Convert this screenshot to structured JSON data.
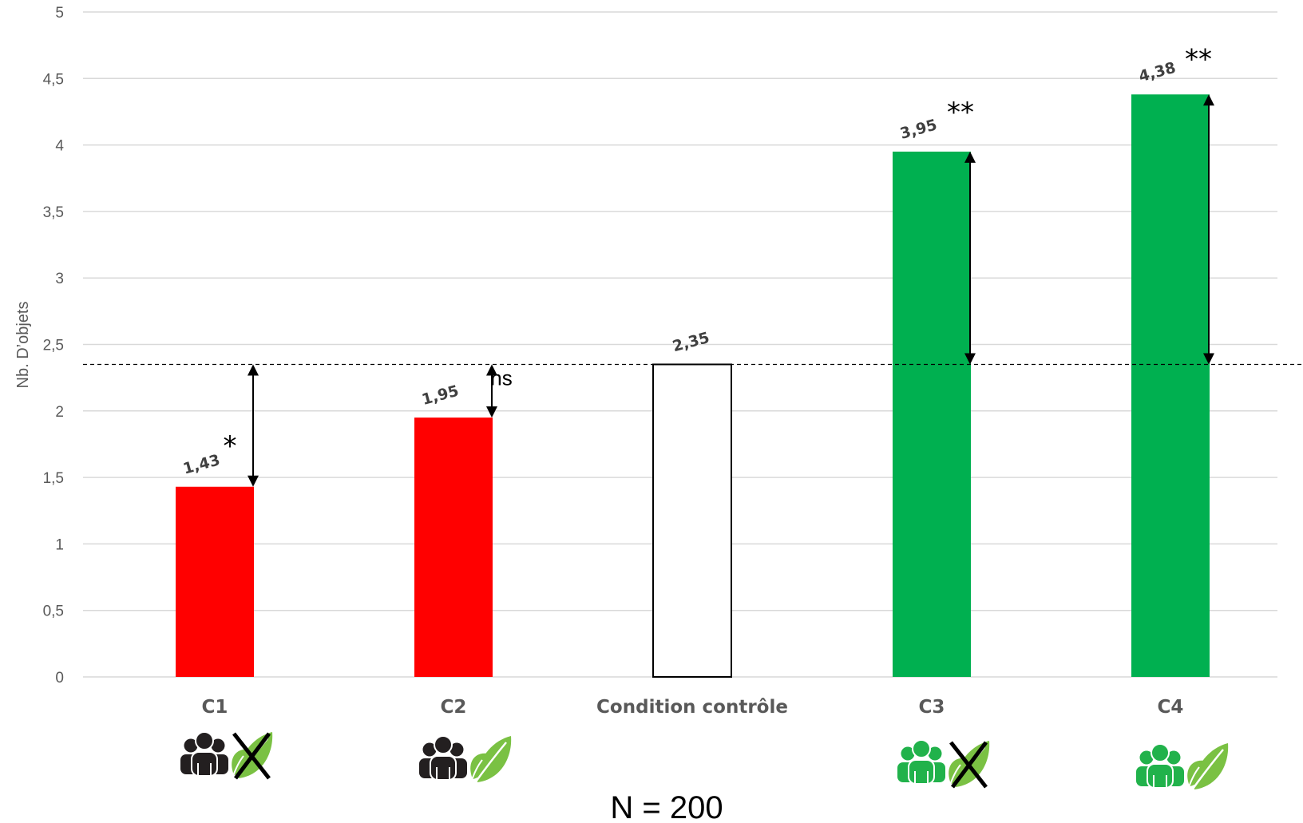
{
  "chart_data": {
    "type": "bar",
    "ylabel": "Nb. D’objets",
    "ylim": [
      0,
      5
    ],
    "yticks": [
      "0",
      "0,5",
      "1",
      "1,5",
      "2",
      "2,5",
      "3",
      "3,5",
      "4",
      "4,5",
      "5"
    ],
    "grid": true,
    "reference_line": 2.35,
    "categories": [
      "C1",
      "C2",
      "Condition contrôle",
      "C3",
      "C4"
    ],
    "values": [
      1.43,
      1.95,
      2.35,
      3.95,
      4.38
    ],
    "value_labels": [
      "1,43",
      "1,95",
      "2,35",
      "3,95",
      "4,38"
    ],
    "significance": [
      "*",
      "ns",
      "",
      "**",
      "**"
    ],
    "bar_colors": [
      "#ff0000",
      "#ff0000",
      "#ffffff",
      "#00b050",
      "#00b050"
    ],
    "condition_icons": [
      {
        "people": "people-black-icon",
        "leaf": "leaf-crossed-icon"
      },
      {
        "people": "people-black-icon",
        "leaf": "leaf-icon"
      },
      null,
      {
        "people": "people-green-icon",
        "leaf": "leaf-crossed-icon"
      },
      {
        "people": "people-green-icon",
        "leaf": "leaf-icon"
      }
    ],
    "footnote": "N = 200"
  },
  "colors": {
    "red": "#ff0000",
    "green": "#00b050",
    "icon_black": "#231f20",
    "icon_green": "#21b24b",
    "leaf_green": "#7ac143",
    "grid": "#d9d9d9"
  }
}
